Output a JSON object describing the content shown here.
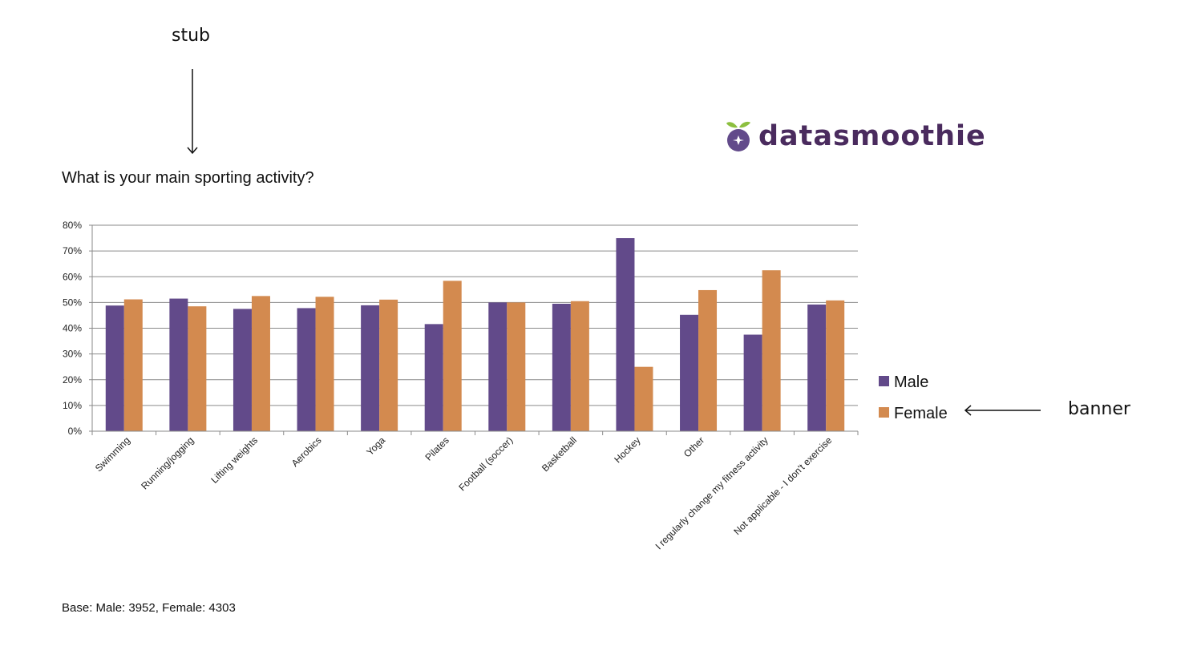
{
  "annotations": {
    "stub": "stub",
    "banner": "banner"
  },
  "logo": {
    "text": "datasmoothie",
    "color": "#4a2b5e",
    "leaf_color": "#8cbf3f"
  },
  "footer": {
    "base": "Base: Male: 3952, Female: 4303"
  },
  "chart_data": {
    "type": "bar",
    "title": "What is your main sporting activity?",
    "categories": [
      "Swimming",
      "Running/jogging",
      "Lifting weights",
      "Aerobics",
      "Yoga",
      "Pilates",
      "Football (soccer)",
      "Basketball",
      "Hockey",
      "Other",
      "I regularly change my fitness activity",
      "Not applicable - I don't exercise"
    ],
    "series": [
      {
        "name": "Male",
        "color": "#624a8a",
        "values": [
          48.8,
          51.5,
          47.5,
          47.8,
          48.9,
          41.6,
          50.0,
          49.5,
          75.0,
          45.2,
          37.5,
          49.2
        ]
      },
      {
        "name": "Female",
        "color": "#d38a4f",
        "values": [
          51.2,
          48.5,
          52.5,
          52.2,
          51.1,
          58.4,
          50.0,
          50.5,
          25.0,
          54.8,
          62.5,
          50.8
        ]
      }
    ],
    "ylim": [
      0,
      80
    ],
    "yticks": [
      "0%",
      "10%",
      "20%",
      "30%",
      "40%",
      "50%",
      "60%",
      "70%",
      "80%"
    ],
    "xlabel": "",
    "ylabel": "",
    "grid": true,
    "legend": "right"
  }
}
